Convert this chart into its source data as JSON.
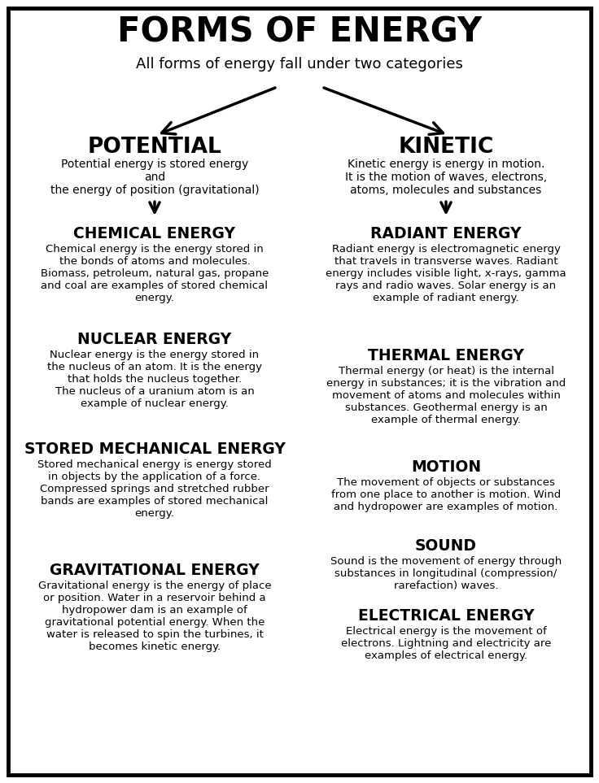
{
  "title": "FORMS OF ENERGY",
  "subtitle": "All forms of energy fall under two categories",
  "bg_color": "#ffffff",
  "border_color": "#000000",
  "text_color": "#000000",
  "left_category": "POTENTIAL",
  "left_category_desc": "Potential energy is stored energy\nand\nthe energy of position (gravitational)",
  "right_category": "KINETIC",
  "right_category_desc": "Kinetic energy is energy in motion.\nIt is the motion of waves, electrons,\natoms, molecules and substances",
  "left_sections": [
    {
      "heading": "CHEMICAL ENERGY",
      "body": "Chemical energy is the energy stored in\nthe bonds of atoms and molecules.\nBiomass, petroleum, natural gas, propane\nand coal are examples of stored chemical\nenergy."
    },
    {
      "heading": "NUCLEAR ENERGY",
      "body": "Nuclear energy is the energy stored in\nthe nucleus of an atom. It is the energy\nthat holds the nucleus together.\nThe nucleus of a uranium atom is an\nexample of nuclear energy."
    },
    {
      "heading": "STORED MECHANICAL ENERGY",
      "body": "Stored mechanical energy is energy stored\nin objects by the application of a force.\nCompressed springs and stretched rubber\nbands are examples of stored mechanical\nenergy."
    },
    {
      "heading": "GRAVITATIONAL ENERGY",
      "body": "Gravitational energy is the energy of place\nor position. Water in a reservoir behind a\nhydropower dam is an example of\ngravitational potential energy. When the\nwater is released to spin the turbines, it\nbecomes kinetic energy."
    }
  ],
  "right_sections": [
    {
      "heading": "RADIANT ENERGY",
      "body": "Radiant energy is electromagnetic energy\nthat travels in transverse waves. Radiant\nenergy includes visible light, x-rays, gamma\nrays and radio waves. Solar energy is an\nexample of radiant energy."
    },
    {
      "heading": "THERMAL ENERGY",
      "body": "Thermal energy (or heat) is the internal\nenergy in substances; it is the vibration and\nmovement of atoms and molecules within\nsubstances. Geothermal energy is an\nexample of thermal energy."
    },
    {
      "heading": "MOTION",
      "body": "The movement of objects or substances\nfrom one place to another is motion. Wind\nand hydropower are examples of motion."
    },
    {
      "heading": "SOUND",
      "body": "Sound is the movement of energy through\nsubstances in longitudinal (compression/\nrarefaction) waves."
    },
    {
      "heading": "ELECTRICAL ENERGY",
      "body": "Electrical energy is the movement of\nelectrons. Lightning and electricity are\nexamples of electrical energy."
    }
  ],
  "figwidth": 7.36,
  "figheight": 9.63,
  "dpi": 100
}
